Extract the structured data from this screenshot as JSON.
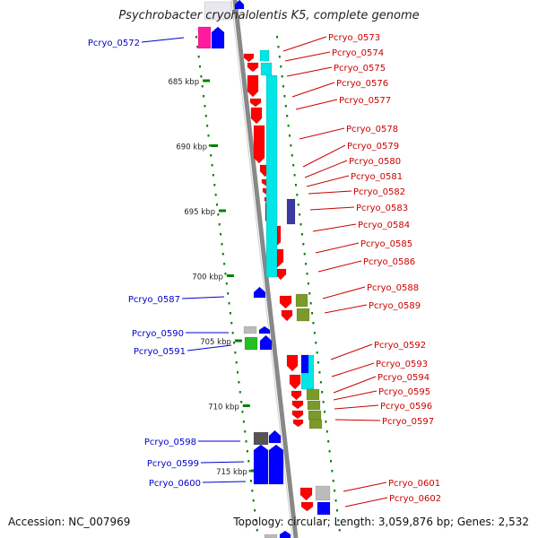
{
  "header": {
    "title": "Psychrobacter cryohalolentis K5, complete genome"
  },
  "footer": {
    "accession": "Accession: NC_007969",
    "summary": "Topology: circular; Length: 3,059,876 bp; Genes: 2,532"
  },
  "scale": {
    "ticks": [
      {
        "label": "685 kbp",
        "kbp": 685
      },
      {
        "label": "690 kbp",
        "kbp": 690
      },
      {
        "label": "695 kbp",
        "kbp": 695
      },
      {
        "label": "700 kbp",
        "kbp": 700
      },
      {
        "label": "705 kbp",
        "kbp": 705
      },
      {
        "label": "710 kbp",
        "kbp": 710
      },
      {
        "label": "715 kbp",
        "kbp": 715
      }
    ]
  },
  "colors": {
    "forward_cds": "#0000ff",
    "reverse_cds": "#ff0000",
    "backbone": "#888888",
    "tick": "#008000",
    "label_left": "#0000cc",
    "label_right": "#cc0000",
    "cyan_feature": "#00e5e5",
    "olive_feature": "#7a9a2a",
    "magenta_feature": "#ff1a9e",
    "green_feature": "#22c022",
    "gray_feature": "#bbbbbb",
    "navy_feature": "#3a3aa0"
  },
  "labels": {
    "left": [
      "Pcryo_0572",
      "Pcryo_0587",
      "Pcryo_0590",
      "Pcryo_0591",
      "Pcryo_0598",
      "Pcryo_0599",
      "Pcryo_0600"
    ],
    "right": [
      "Pcryo_0573",
      "Pcryo_0574",
      "Pcryo_0575",
      "Pcryo_0576",
      "Pcryo_0577",
      "Pcryo_0578",
      "Pcryo_0579",
      "Pcryo_0580",
      "Pcryo_0581",
      "Pcryo_0582",
      "Pcryo_0583",
      "Pcryo_0584",
      "Pcryo_0585",
      "Pcryo_0586",
      "Pcryo_0588",
      "Pcryo_0589",
      "Pcryo_0592",
      "Pcryo_0593",
      "Pcryo_0594",
      "Pcryo_0595",
      "Pcryo_0596",
      "Pcryo_0597",
      "Pcryo_0601",
      "Pcryo_0602"
    ]
  }
}
